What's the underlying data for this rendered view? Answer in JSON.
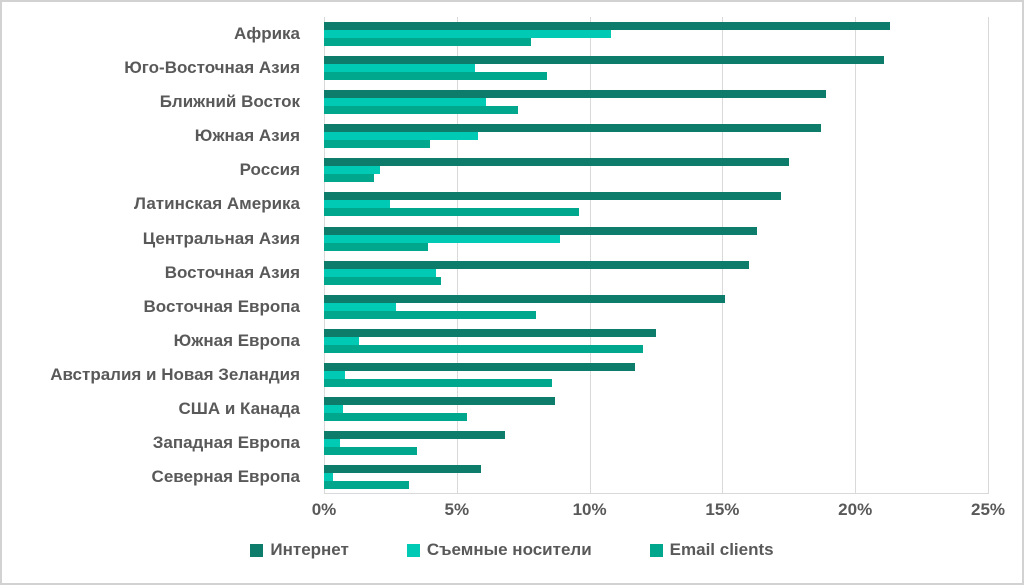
{
  "chart_data": {
    "type": "bar",
    "orientation": "horizontal",
    "title": "",
    "xlabel": "",
    "ylabel": "",
    "xlim": [
      0,
      25
    ],
    "x_ticks": [
      "0%",
      "5%",
      "10%",
      "15%",
      "20%",
      "25%"
    ],
    "x_tick_values": [
      0,
      5,
      10,
      15,
      20,
      25
    ],
    "grid": "vertical",
    "legend_position": "bottom",
    "categories": [
      "Африка",
      "Юго-Восточная Азия",
      "Ближний Восток",
      "Южная Азия",
      "Россия",
      "Латинская Америка",
      "Центральная Азия",
      "Восточная Азия",
      "Восточная Европа",
      "Южная Европа",
      "Австралия и Новая Зеландия",
      "США и Канада",
      "Западная Европа",
      "Северная Европа"
    ],
    "series": [
      {
        "name": "Интернет",
        "key": "internet",
        "color": "#0e7c6a",
        "values": [
          21.3,
          21.1,
          18.9,
          18.7,
          17.5,
          17.2,
          16.3,
          16.0,
          15.1,
          12.5,
          11.7,
          8.7,
          6.8,
          5.9
        ]
      },
      {
        "name": "Съемные носители",
        "key": "removable-media",
        "color": "#00c9b4",
        "values": [
          10.8,
          5.7,
          6.1,
          5.8,
          2.1,
          2.5,
          8.9,
          4.2,
          2.7,
          1.3,
          0.8,
          0.7,
          0.6,
          0.35
        ]
      },
      {
        "name": "Email clients",
        "key": "email-clients",
        "color": "#00a78d",
        "values": [
          7.8,
          8.4,
          7.3,
          4.0,
          1.9,
          9.6,
          3.9,
          4.4,
          8.0,
          12.0,
          8.6,
          5.4,
          3.5,
          3.2
        ]
      }
    ]
  },
  "colors": {
    "gridline": "#d9d9d9",
    "axis_text": "#595959",
    "frame_border": "#d2d2d2",
    "background": "#ffffff"
  }
}
